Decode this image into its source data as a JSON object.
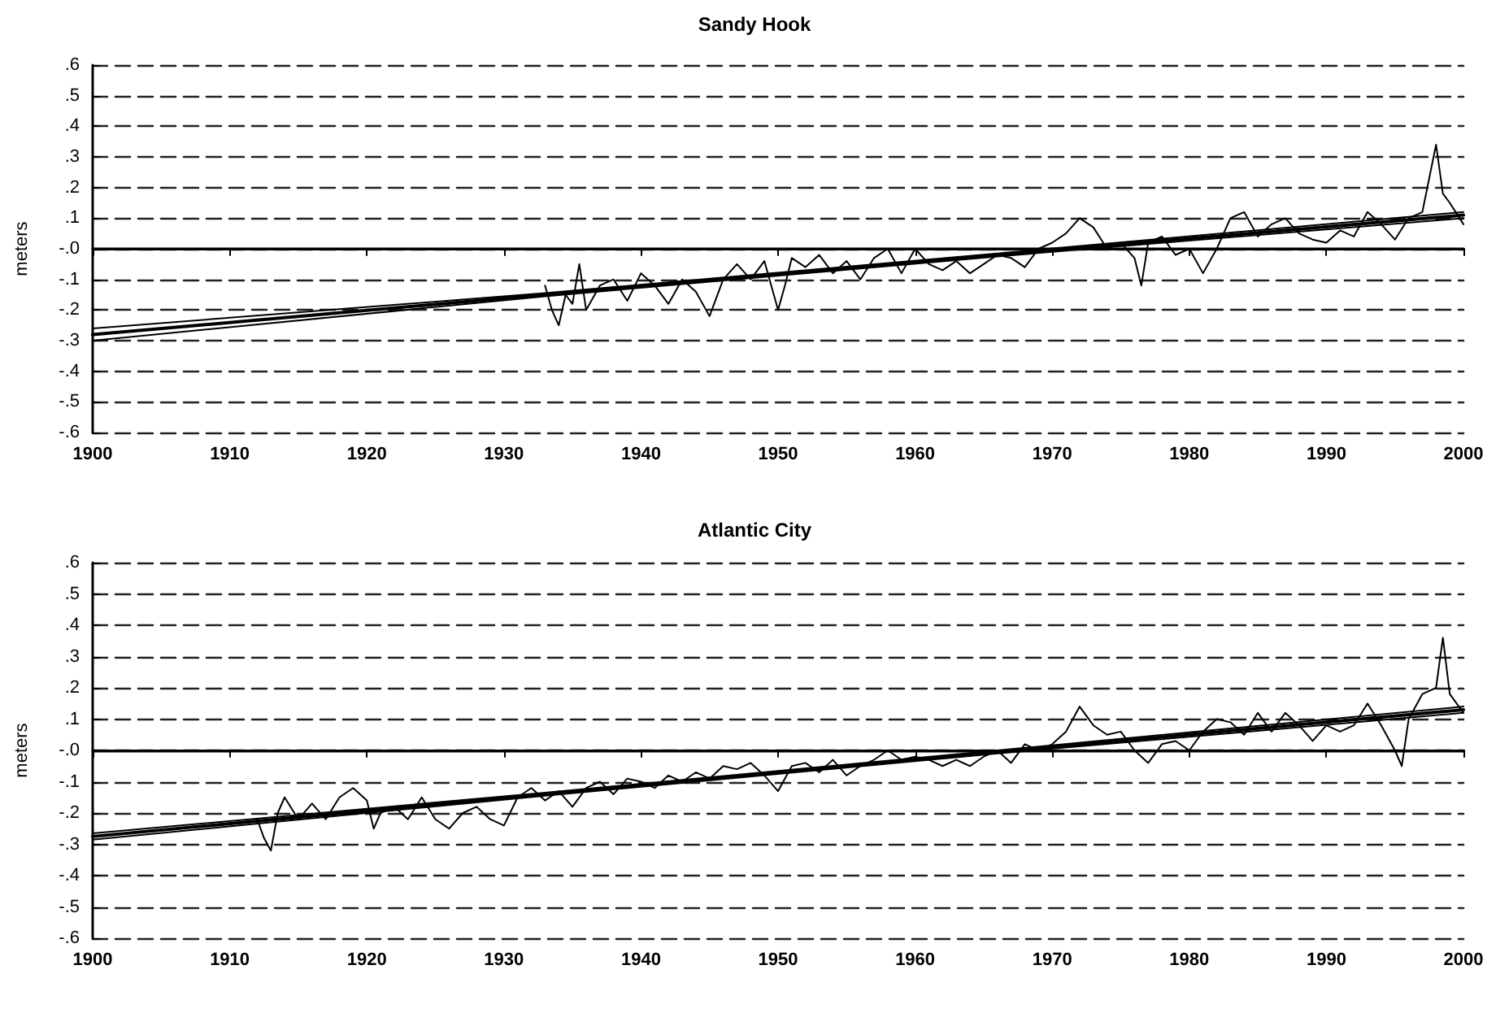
{
  "chart_data": [
    {
      "type": "line",
      "title": "Sandy Hook",
      "ylabel": "meters",
      "xlim": [
        1900,
        2000
      ],
      "xticks": [
        1900,
        1910,
        1920,
        1930,
        1940,
        1950,
        1960,
        1970,
        1980,
        1990,
        2000
      ],
      "ylim": [
        -0.6,
        0.6
      ],
      "yticks": [
        {
          "value": 0.6,
          "label": ".6"
        },
        {
          "value": 0.5,
          "label": ".5"
        },
        {
          "value": 0.4,
          "label": ".4"
        },
        {
          "value": 0.3,
          "label": ".3"
        },
        {
          "value": 0.2,
          "label": ".2"
        },
        {
          "value": 0.1,
          "label": ".1"
        },
        {
          "value": 0,
          "label": "-.0"
        },
        {
          "value": -0.1,
          "label": "-.1"
        },
        {
          "value": -0.2,
          "label": "-.2"
        },
        {
          "value": -0.3,
          "label": "-.3"
        },
        {
          "value": -0.4,
          "label": "-.4"
        },
        {
          "value": -0.5,
          "label": "-.5"
        },
        {
          "value": -0.6,
          "label": "-.6"
        }
      ],
      "grid": "y",
      "ref_lines": [
        {
          "axis": "y",
          "value": 0,
          "color": "#000000",
          "line_style": "solid"
        }
      ],
      "series": [
        {
          "color": "#000000",
          "x": [
            1933,
            1933.5,
            1934,
            1934.5,
            1935,
            1935.5,
            1936,
            1937,
            1938,
            1939,
            1940,
            1941,
            1942,
            1943,
            1944,
            1945,
            1946,
            1947,
            1948,
            1949,
            1950,
            1950.5,
            1951,
            1952,
            1953,
            1954,
            1955,
            1956,
            1957,
            1958,
            1959,
            1960,
            1961,
            1962,
            1963,
            1964,
            1965,
            1966,
            1967,
            1968,
            1969,
            1970,
            1971,
            1972,
            1973,
            1974,
            1975,
            1976,
            1976.5,
            1977,
            1978,
            1979,
            1980,
            1981,
            1982,
            1983,
            1984,
            1985,
            1986,
            1987,
            1988,
            1989,
            1990,
            1991,
            1992,
            1993,
            1994,
            1995,
            1996,
            1997,
            1998,
            1998.5,
            1999,
            2000
          ],
          "values": [
            -0.12,
            -0.2,
            -0.25,
            -0.15,
            -0.18,
            -0.05,
            -0.2,
            -0.12,
            -0.1,
            -0.17,
            -0.08,
            -0.12,
            -0.18,
            -0.1,
            -0.14,
            -0.22,
            -0.1,
            -0.05,
            -0.1,
            -0.04,
            -0.2,
            -0.12,
            -0.03,
            -0.06,
            -0.02,
            -0.08,
            -0.04,
            -0.1,
            -0.03,
            0.0,
            -0.08,
            0.0,
            -0.05,
            -0.07,
            -0.04,
            -0.08,
            -0.05,
            -0.02,
            -0.03,
            -0.06,
            0.0,
            0.02,
            0.05,
            0.1,
            0.07,
            0.0,
            0.02,
            -0.03,
            -0.12,
            0.02,
            0.04,
            -0.02,
            0.0,
            -0.08,
            0.0,
            0.1,
            0.12,
            0.04,
            0.08,
            0.1,
            0.05,
            0.03,
            0.02,
            0.06,
            0.04,
            0.12,
            0.08,
            0.03,
            0.1,
            0.12,
            0.34,
            0.18,
            0.15,
            0.08
          ]
        },
        {
          "color": "#000000",
          "x": [
            1900,
            1933,
            1966,
            2000
          ],
          "values": [
            -0.28,
            -0.15,
            -0.02,
            0.11
          ]
        },
        {
          "color": "#000000",
          "x": [
            1900,
            1933,
            1966,
            2000
          ],
          "values": [
            -0.3,
            -0.155,
            -0.025,
            0.1
          ]
        },
        {
          "color": "#000000",
          "x": [
            1900,
            1933,
            1966,
            2000
          ],
          "values": [
            -0.26,
            -0.145,
            -0.015,
            0.12
          ]
        }
      ]
    },
    {
      "type": "line",
      "title": "Atlantic City",
      "ylabel": "meters",
      "xlim": [
        1900,
        2000
      ],
      "xticks": [
        1900,
        1910,
        1920,
        1930,
        1940,
        1950,
        1960,
        1970,
        1980,
        1990,
        2000
      ],
      "ylim": [
        -0.6,
        0.6
      ],
      "yticks": [
        {
          "value": 0.6,
          "label": ".6"
        },
        {
          "value": 0.5,
          "label": ".5"
        },
        {
          "value": 0.4,
          "label": ".4"
        },
        {
          "value": 0.3,
          "label": ".3"
        },
        {
          "value": 0.2,
          "label": ".2"
        },
        {
          "value": 0.1,
          "label": ".1"
        },
        {
          "value": 0,
          "label": "-.0"
        },
        {
          "value": -0.1,
          "label": "-.1"
        },
        {
          "value": -0.2,
          "label": "-.2"
        },
        {
          "value": -0.3,
          "label": "-.3"
        },
        {
          "value": -0.4,
          "label": "-.4"
        },
        {
          "value": -0.5,
          "label": "-.5"
        },
        {
          "value": -0.6,
          "label": "-.6"
        }
      ],
      "grid": "y",
      "ref_lines": [
        {
          "axis": "y",
          "value": 0,
          "color": "#000000",
          "line_style": "solid"
        }
      ],
      "series": [
        {
          "color": "#000000",
          "x": [
            1912,
            1912.5,
            1913,
            1913.5,
            1914,
            1915,
            1916,
            1917,
            1918,
            1919,
            1920,
            1920.5,
            1921,
            1922,
            1923,
            1924,
            1925,
            1926,
            1927,
            1928,
            1929,
            1930,
            1931,
            1932,
            1933,
            1934,
            1935,
            1936,
            1937,
            1938,
            1939,
            1940,
            1941,
            1942,
            1943,
            1944,
            1945,
            1946,
            1947,
            1948,
            1949,
            1950,
            1951,
            1952,
            1953,
            1954,
            1955,
            1956,
            1957,
            1958,
            1959,
            1960,
            1961,
            1962,
            1963,
            1964,
            1965,
            1966,
            1967,
            1968,
            1969,
            1970,
            1971,
            1972,
            1973,
            1974,
            1975,
            1976,
            1977,
            1978,
            1979,
            1980,
            1981,
            1982,
            1983,
            1984,
            1985,
            1986,
            1987,
            1988,
            1989,
            1990,
            1991,
            1992,
            1993,
            1994,
            1995,
            1995.5,
            1996,
            1997,
            1998,
            1998.5,
            1999,
            2000
          ],
          "values": [
            -0.22,
            -0.28,
            -0.32,
            -0.2,
            -0.15,
            -0.22,
            -0.17,
            -0.22,
            -0.15,
            -0.12,
            -0.16,
            -0.25,
            -0.2,
            -0.18,
            -0.22,
            -0.15,
            -0.22,
            -0.25,
            -0.2,
            -0.18,
            -0.22,
            -0.24,
            -0.15,
            -0.12,
            -0.16,
            -0.13,
            -0.18,
            -0.12,
            -0.1,
            -0.14,
            -0.09,
            -0.1,
            -0.12,
            -0.08,
            -0.1,
            -0.07,
            -0.09,
            -0.05,
            -0.06,
            -0.04,
            -0.08,
            -0.13,
            -0.05,
            -0.04,
            -0.07,
            -0.03,
            -0.08,
            -0.05,
            -0.03,
            0.0,
            -0.03,
            -0.02,
            -0.03,
            -0.05,
            -0.03,
            -0.05,
            -0.02,
            0.0,
            -0.04,
            0.02,
            0.0,
            0.02,
            0.06,
            0.14,
            0.08,
            0.05,
            0.06,
            0.0,
            -0.04,
            0.02,
            0.03,
            0.0,
            0.06,
            0.1,
            0.09,
            0.05,
            0.12,
            0.06,
            0.12,
            0.08,
            0.03,
            0.08,
            0.06,
            0.08,
            0.15,
            0.08,
            0.0,
            -0.05,
            0.1,
            0.18,
            0.2,
            0.36,
            0.18,
            0.12
          ]
        },
        {
          "color": "#000000",
          "x": [
            1900,
            1933,
            1966,
            2000
          ],
          "values": [
            -0.275,
            -0.14,
            -0.005,
            0.13
          ]
        },
        {
          "color": "#000000",
          "x": [
            1900,
            1933,
            1966,
            2000
          ],
          "values": [
            -0.285,
            -0.145,
            -0.01,
            0.12
          ]
        },
        {
          "color": "#000000",
          "x": [
            1900,
            1933,
            1966,
            2000
          ],
          "values": [
            -0.265,
            -0.135,
            0.0,
            0.14
          ]
        }
      ]
    }
  ]
}
